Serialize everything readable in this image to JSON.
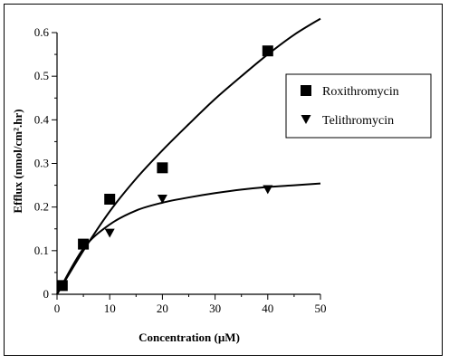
{
  "chart_data": {
    "type": "scatter",
    "title": "",
    "xlabel": "Concentration (µM)",
    "ylabel": "Efflux (nmol/cm².hr)",
    "xlim": [
      0,
      50
    ],
    "ylim": [
      0,
      0.6
    ],
    "xticks": [
      "0",
      "10",
      "20",
      "30",
      "40",
      "50"
    ],
    "yticks": [
      "0",
      "0.1",
      "0.2",
      "0.3",
      "0.4",
      "0.5",
      "0.6"
    ],
    "grid": false,
    "legend_position": "right",
    "series": [
      {
        "name": "Roxithromycin",
        "marker": "square",
        "color": "#000000",
        "points": [
          {
            "x": 1,
            "y": 0.02
          },
          {
            "x": 5,
            "y": 0.115
          },
          {
            "x": 10,
            "y": 0.218
          },
          {
            "x": 20,
            "y": 0.29
          },
          {
            "x": 40,
            "y": 0.558
          }
        ],
        "fit_curve": [
          {
            "x": 0,
            "y": 0.0
          },
          {
            "x": 5,
            "y": 0.1
          },
          {
            "x": 10,
            "y": 0.19
          },
          {
            "x": 15,
            "y": 0.265
          },
          {
            "x": 20,
            "y": 0.33
          },
          {
            "x": 25,
            "y": 0.39
          },
          {
            "x": 30,
            "y": 0.448
          },
          {
            "x": 35,
            "y": 0.5
          },
          {
            "x": 40,
            "y": 0.55
          },
          {
            "x": 45,
            "y": 0.595
          },
          {
            "x": 50,
            "y": 0.632
          }
        ]
      },
      {
        "name": "Telithromycin",
        "marker": "triangle-down",
        "color": "#000000",
        "points": [
          {
            "x": 1,
            "y": 0.02
          },
          {
            "x": 5,
            "y": 0.115
          },
          {
            "x": 10,
            "y": 0.14
          },
          {
            "x": 20,
            "y": 0.218
          },
          {
            "x": 40,
            "y": 0.24
          }
        ],
        "fit_curve": [
          {
            "x": 0,
            "y": 0.0
          },
          {
            "x": 5,
            "y": 0.105
          },
          {
            "x": 10,
            "y": 0.16
          },
          {
            "x": 15,
            "y": 0.192
          },
          {
            "x": 20,
            "y": 0.21
          },
          {
            "x": 25,
            "y": 0.222
          },
          {
            "x": 30,
            "y": 0.232
          },
          {
            "x": 35,
            "y": 0.24
          },
          {
            "x": 40,
            "y": 0.246
          },
          {
            "x": 45,
            "y": 0.25
          },
          {
            "x": 50,
            "y": 0.254
          }
        ]
      }
    ]
  }
}
